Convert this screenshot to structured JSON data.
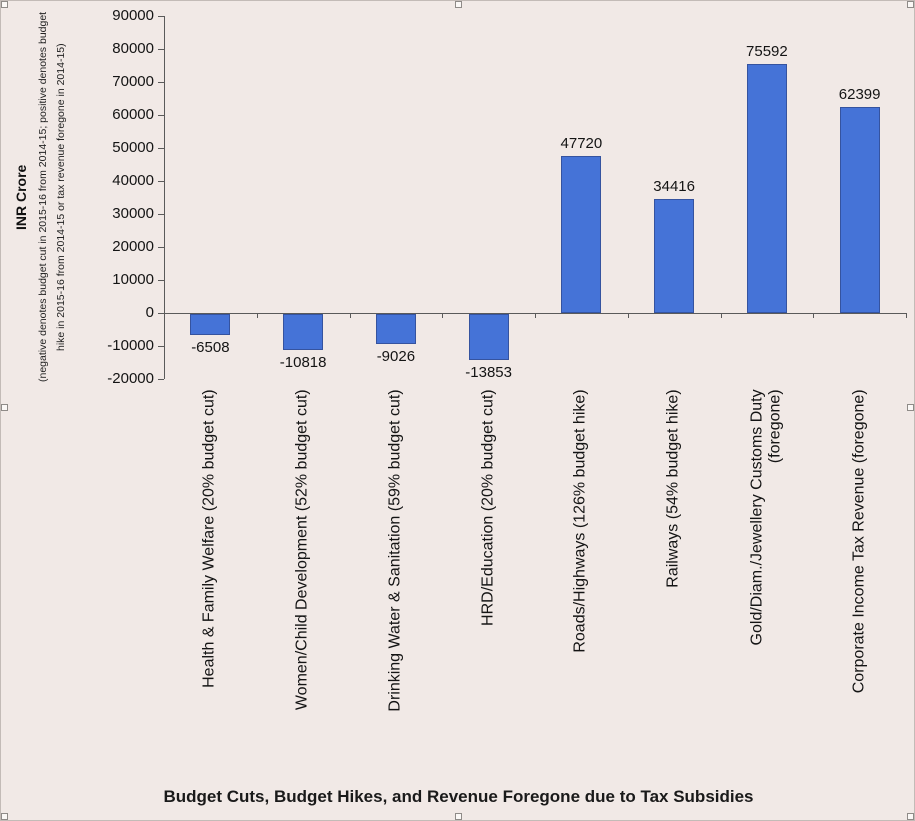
{
  "chart_data": {
    "type": "bar",
    "title": "Budget Cuts, Budget Hikes, and Revenue Foregone due to Tax Subsidies",
    "ylabel": "INR Crore",
    "ylabel_note_lines": [
      "(negative denotes budget cut in 2015-16 from 2014-15; positive denotes budget",
      "hike in 2015-16 from 2014-15 or tax revenue foregone in 2014-15)"
    ],
    "categories": [
      "Health & Family Welfare (20% budget cut)",
      "Women/Child Development (52% budget cut)",
      "Drinking Water & Sanitation (59% budget cut)",
      "HRD/Education (20% budget cut)",
      "Roads/Highways (126% budget hike)",
      "Railways (54% budget hike)",
      "Gold/Diam./Jewellery Customs Duty\n(foregone)",
      "Corporate Income Tax Revenue (foregone)"
    ],
    "values": [
      -6508,
      -10818,
      -9026,
      -13853,
      47720,
      34416,
      75592,
      62399
    ],
    "ylim": [
      -20000,
      90000
    ],
    "ytick_step": 10000,
    "legend": "none",
    "grid": false,
    "colors": {
      "bar": "#4573d7",
      "bar_border": "#35539f",
      "background": "#f1e9e6",
      "axis": "#5a5a5a"
    }
  }
}
